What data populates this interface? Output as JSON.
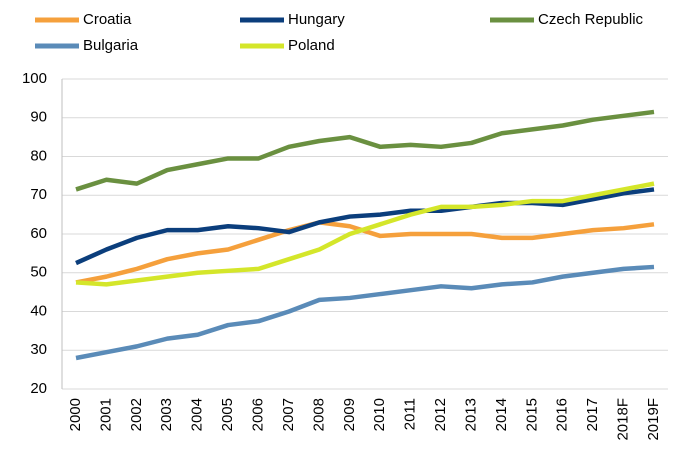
{
  "chart_data": {
    "type": "line",
    "categories": [
      "2000",
      "2001",
      "2002",
      "2003",
      "2004",
      "2005",
      "2006",
      "2007",
      "2008",
      "2009",
      "2010",
      "2011",
      "2012",
      "2013",
      "2014",
      "2015",
      "2016",
      "2017",
      "2018F",
      "2019F"
    ],
    "series": [
      {
        "name": "Croatia",
        "color": "#f5a03c",
        "values": [
          47.5,
          49,
          51,
          53.5,
          55,
          56,
          58.5,
          61,
          63,
          62,
          59.5,
          60,
          60,
          60,
          59,
          59,
          60,
          61,
          61.5,
          62.5
        ]
      },
      {
        "name": "Hungary",
        "color": "#0b3e7c",
        "values": [
          52.5,
          56,
          59,
          61,
          61,
          62,
          61.5,
          60.5,
          63,
          64.5,
          65,
          66,
          66,
          67,
          68,
          68,
          67.5,
          69,
          70.5,
          71.5
        ]
      },
      {
        "name": "Czech Republic",
        "color": "#6a9040",
        "values": [
          71.5,
          74,
          73,
          76.5,
          78,
          79.5,
          79.5,
          82.5,
          84,
          85,
          82.5,
          83,
          82.5,
          83.5,
          86,
          87,
          88,
          89.5,
          90.5,
          91.5
        ]
      },
      {
        "name": "Bulgaria",
        "color": "#5a8bb8",
        "values": [
          28,
          29.5,
          31,
          33,
          34,
          36.5,
          37.5,
          40,
          43,
          43.5,
          44.5,
          45.5,
          46.5,
          46,
          47,
          47.5,
          49,
          50,
          51,
          51.5
        ]
      },
      {
        "name": "Poland",
        "color": "#d4e62a",
        "values": [
          47.5,
          47,
          48,
          49,
          50,
          50.5,
          51,
          53.5,
          56,
          60,
          62.5,
          65,
          67,
          67,
          67.5,
          68.5,
          68.5,
          70,
          71.5,
          73
        ]
      }
    ],
    "ylim": [
      20,
      100
    ],
    "yticks": [
      20,
      30,
      40,
      50,
      60,
      70,
      80,
      90,
      100
    ],
    "grid": true
  }
}
